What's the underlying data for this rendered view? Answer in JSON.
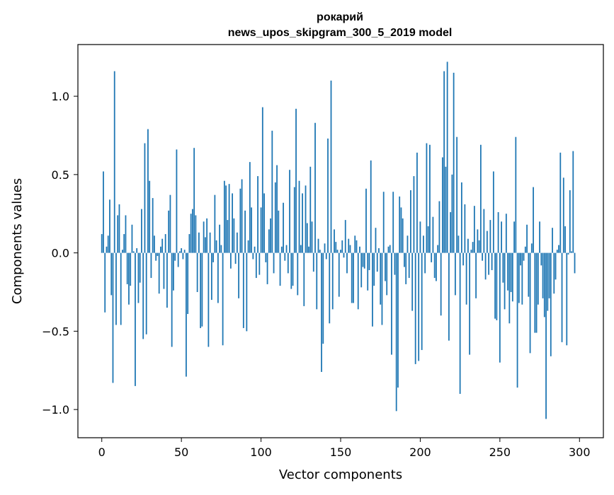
{
  "chart_data": {
    "type": "bar",
    "title_line1": "рокарий",
    "title_line2": "news_upos_skipgram_300_5_2019 model",
    "xlabel": "Vector components",
    "ylabel": "Components values",
    "xlim": [
      -15,
      315
    ],
    "ylim": [
      -1.18,
      1.33
    ],
    "xticks": [
      0,
      50,
      100,
      150,
      200,
      250,
      300
    ],
    "xtick_labels": [
      "0",
      "50",
      "100",
      "150",
      "200",
      "250",
      "300"
    ],
    "yticks": [
      -1.0,
      -0.5,
      0.0,
      0.5,
      1.0
    ],
    "ytick_labels": [
      "−1.0",
      "−0.5",
      "0.0",
      "0.5",
      "1.0"
    ],
    "bar_color": "#1f77b4",
    "grid": false,
    "x_start": 0,
    "values": [
      0.12,
      0.52,
      -0.38,
      0.04,
      0.11,
      0.34,
      -0.27,
      -0.83,
      1.16,
      -0.46,
      0.24,
      0.31,
      -0.46,
      0.02,
      0.12,
      0.24,
      -0.2,
      -0.33,
      -0.21,
      0.18,
      0.01,
      -0.85,
      0.03,
      -0.32,
      -0.19,
      0.28,
      -0.55,
      0.7,
      -0.52,
      0.79,
      0.46,
      -0.16,
      0.35,
      0.11,
      -0.05,
      -0.02,
      -0.26,
      0.04,
      0.09,
      -0.23,
      0.12,
      -0.35,
      0.27,
      0.37,
      -0.6,
      -0.24,
      -0.05,
      0.66,
      -0.09,
      0.01,
      0.03,
      -0.04,
      0.02,
      -0.79,
      -0.39,
      0.12,
      0.25,
      0.28,
      0.67,
      0.24,
      -0.25,
      0.13,
      -0.48,
      -0.47,
      0.2,
      0.1,
      0.22,
      -0.6,
      0.13,
      -0.3,
      -0.06,
      0.37,
      0.08,
      -0.32,
      0.18,
      0.05,
      -0.59,
      0.46,
      0.43,
      0.21,
      0.44,
      -0.1,
      0.38,
      0.22,
      -0.07,
      0.13,
      -0.29,
      0.41,
      0.47,
      -0.48,
      0.27,
      -0.5,
      0.08,
      0.58,
      0.29,
      -0.04,
      0.04,
      -0.16,
      0.49,
      -0.14,
      0.29,
      0.93,
      0.38,
      -0.06,
      -0.2,
      0.15,
      0.22,
      0.78,
      -0.13,
      0.45,
      0.56,
      0.27,
      -0.21,
      0.04,
      0.32,
      -0.05,
      0.05,
      -0.13,
      0.53,
      -0.23,
      -0.21,
      0.42,
      0.92,
      -0.27,
      0.46,
      0.05,
      0.38,
      -0.34,
      0.43,
      0.19,
      0.04,
      0.55,
      0.2,
      -0.12,
      0.83,
      -0.36,
      0.09,
      0.02,
      -0.76,
      -0.58,
      0.06,
      -0.04,
      0.73,
      -0.45,
      1.1,
      -0.36,
      0.15,
      0.07,
      0.02,
      -0.28,
      0.02,
      0.08,
      -0.03,
      0.21,
      -0.13,
      0.09,
      0.05,
      -0.32,
      -0.32,
      0.11,
      0.08,
      -0.36,
      0.04,
      -0.22,
      -0.09,
      -0.1,
      0.41,
      -0.24,
      -0.11,
      0.59,
      -0.47,
      -0.21,
      0.16,
      -0.12,
      0.03,
      -0.33,
      -0.46,
      0.39,
      -0.18,
      -0.27,
      0.04,
      0.05,
      -0.65,
      0.39,
      -0.14,
      -1.01,
      -0.86,
      0.36,
      0.29,
      0.22,
      -0.09,
      -0.2,
      0.11,
      -0.16,
      0.4,
      -0.37,
      0.49,
      -0.71,
      0.64,
      -0.69,
      0.2,
      -0.62,
      0.11,
      -0.13,
      0.7,
      0.17,
      0.69,
      -0.06,
      0.23,
      -0.16,
      -0.18,
      0.05,
      0.33,
      -0.4,
      0.61,
      1.16,
      0.55,
      1.22,
      -0.56,
      0.26,
      0.5,
      1.15,
      -0.27,
      0.74,
      0.11,
      -0.9,
      0.45,
      -0.08,
      0.31,
      -0.33,
      0.09,
      -0.65,
      0.02,
      0.07,
      0.3,
      -0.29,
      0.15,
      0.08,
      0.69,
      -0.05,
      0.28,
      -0.17,
      0.14,
      -0.14,
      0.21,
      -0.11,
      0.52,
      -0.42,
      -0.43,
      0.26,
      -0.7,
      0.2,
      -0.19,
      -0.36,
      0.25,
      -0.24,
      -0.45,
      -0.25,
      -0.31,
      0.2,
      0.74,
      -0.86,
      -0.32,
      -0.08,
      -0.33,
      -0.05,
      0.04,
      0.18,
      -0.28,
      -0.64,
      0.06,
      0.42,
      -0.51,
      -0.51,
      -0.33,
      0.2,
      -0.08,
      -0.29,
      -0.41,
      -1.06,
      -0.37,
      -0.29,
      -0.66,
      0.16,
      -0.26,
      -0.17,
      0.02,
      0.05,
      0.64,
      -0.57,
      0.48,
      0.17,
      -0.59,
      -0.01,
      0.4,
      0.01,
      0.65,
      -0.13
    ]
  }
}
